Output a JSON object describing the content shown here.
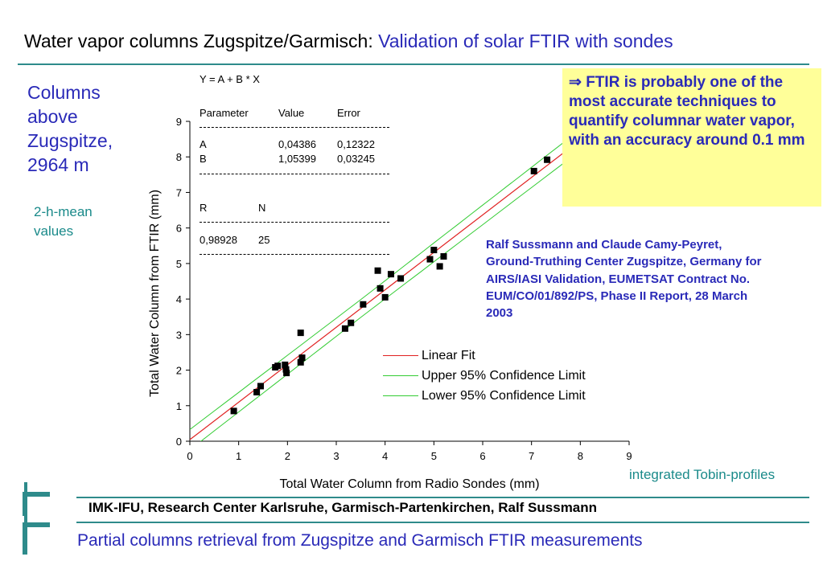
{
  "header": {
    "title_plain": "Water vapor columns Zugspitze/Garmisch: ",
    "title_accent": "Validation of solar FTIR with sondes"
  },
  "side": {
    "columns_lines": [
      "Columns",
      "above",
      "Zugspitze,",
      "2964 m"
    ],
    "mean_lines": [
      "2-h-mean",
      "values"
    ]
  },
  "fit_box": {
    "equation": "Y = A + B * X",
    "header": {
      "parameter": "Parameter",
      "value": "Value",
      "error": "Error"
    },
    "rows": [
      {
        "param": "A",
        "value": "0,04386",
        "error": "0,12322"
      },
      {
        "param": "B",
        "value": "1,05399",
        "error": "0,03245"
      }
    ],
    "r_label": "R",
    "n_label": "N",
    "r_value": "0,98928",
    "n_value": "25"
  },
  "callout": {
    "arrow": "⇒",
    "text": "FTIR is probably one of the  most accurate techniques to quantify columnar water vapor, with an accuracy around 0.1 mm"
  },
  "reference": {
    "lines": [
      "Ralf Sussmann and Claude Camy-Peyret,",
      "Ground-Truthing Center Zugspitze, Germany for",
      "AIRS/IASI Validation, EUMETSAT Contract No.",
      "EUM/CO/01/892/PS, Phase II Report, 28 March",
      "2003"
    ]
  },
  "tobin_note": "integrated Tobin-profiles",
  "legend": [
    {
      "label": "Linear Fit",
      "color": "#e02020"
    },
    {
      "label": "Upper 95% Confidence Limit",
      "color": "#33cc33"
    },
    {
      "label": "Lower 95% Confidence Limit",
      "color": "#33cc33"
    }
  ],
  "footer": {
    "org": "IMK-IFU, Research Center Karlsruhe, Garmisch-Partenkirchen, Ralf Sussmann",
    "subtitle": "Partial columns retrieval from Zugspitze and Garmisch FTIR measurements"
  },
  "chart_data": {
    "type": "scatter",
    "xlabel": "Total Water Column from Radio Sondes  (mm)",
    "ylabel": "Total Water Column from FTIR  (mm)",
    "xlim": [
      0,
      9
    ],
    "ylim": [
      0,
      9
    ],
    "xticks": [
      "0",
      "1",
      "2",
      "3",
      "4",
      "5",
      "6",
      "7",
      "8",
      "9"
    ],
    "yticks": [
      "0",
      "1",
      "2",
      "3",
      "4",
      "5",
      "6",
      "7",
      "8",
      "9"
    ],
    "points": [
      [
        0.9,
        0.85
      ],
      [
        1.37,
        1.38
      ],
      [
        1.45,
        1.55
      ],
      [
        1.75,
        2.08
      ],
      [
        1.8,
        2.12
      ],
      [
        1.95,
        2.15
      ],
      [
        1.97,
        2.02
      ],
      [
        1.98,
        1.92
      ],
      [
        2.27,
        2.22
      ],
      [
        2.3,
        2.35
      ],
      [
        2.27,
        3.05
      ],
      [
        3.18,
        3.17
      ],
      [
        3.3,
        3.33
      ],
      [
        3.55,
        3.85
      ],
      [
        3.85,
        4.8
      ],
      [
        3.9,
        4.3
      ],
      [
        4.0,
        4.05
      ],
      [
        4.12,
        4.7
      ],
      [
        4.32,
        4.58
      ],
      [
        4.92,
        5.12
      ],
      [
        5.0,
        5.38
      ],
      [
        5.12,
        4.92
      ],
      [
        5.2,
        5.2
      ],
      [
        7.05,
        7.6
      ],
      [
        7.32,
        7.92
      ]
    ],
    "fit": {
      "a": 0.04386,
      "b": 1.05399
    },
    "series_colors": {
      "points": "#000000",
      "fit": "#e02020",
      "confidence": "#33cc33"
    }
  }
}
